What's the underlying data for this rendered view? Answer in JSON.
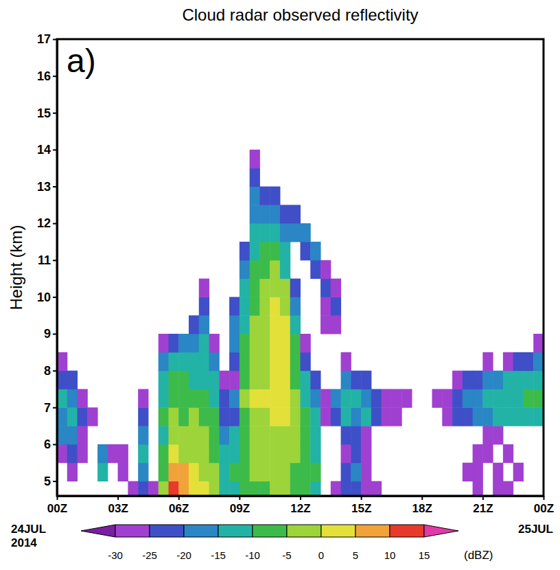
{
  "chart_data": {
    "type": "heatmap",
    "title": "Cloud radar observed reflectivity",
    "panel_label": "a)",
    "y_label": "Height (km)",
    "annotations": [
      "24JUL\n2014",
      "25JUL"
    ],
    "xlim": [
      0,
      24
    ],
    "xticks": [
      {
        "value": 0,
        "label": "00Z"
      },
      {
        "value": 3,
        "label": "03Z"
      },
      {
        "value": 6,
        "label": "06Z"
      },
      {
        "value": 9,
        "label": "09Z"
      },
      {
        "value": 12,
        "label": "12Z"
      },
      {
        "value": 15,
        "label": "15Z"
      },
      {
        "value": 18,
        "label": "18Z"
      },
      {
        "value": 21,
        "label": "21Z"
      },
      {
        "value": 24,
        "label": "00Z"
      }
    ],
    "ylim": [
      4.6,
      17
    ],
    "yticks": [
      5,
      6,
      7,
      8,
      9,
      10,
      11,
      12,
      13,
      14,
      15,
      16,
      17
    ],
    "x": [
      0.25,
      0.75,
      1.25,
      1.75,
      2.25,
      2.75,
      3.25,
      3.75,
      4.25,
      4.75,
      5.25,
      5.75,
      6.25,
      6.75,
      7.25,
      7.75,
      8.25,
      8.75,
      9.25,
      9.75,
      10.25,
      10.75,
      11.25,
      11.75,
      12.25,
      12.75,
      13.25,
      13.75,
      14.25,
      14.75,
      15.25,
      15.75,
      16.25,
      16.75,
      17.25,
      17.75,
      18.25,
      18.75,
      19.25,
      19.75,
      20.25,
      20.75,
      21.25,
      21.75,
      22.25,
      22.75,
      23.25,
      23.75
    ],
    "y": [
      4.75,
      5.25,
      5.75,
      6.25,
      6.75,
      7.25,
      7.75,
      8.25,
      8.75,
      9.25,
      9.75,
      10.25,
      10.75,
      11.25,
      11.75,
      12.25,
      12.75,
      13.25,
      13.75
    ],
    "z": [
      [
        null,
        null,
        -28,
        -20,
        -18,
        -15,
        -22,
        -30,
        null,
        null,
        null,
        null,
        null,
        null,
        null,
        null,
        null,
        null,
        null
      ],
      [
        null,
        -28,
        -22,
        -20,
        -15,
        -18,
        -25,
        null,
        null,
        null,
        null,
        null,
        null,
        null,
        null,
        null,
        null,
        null,
        null
      ],
      [
        null,
        null,
        -27,
        -28,
        -22,
        -26,
        null,
        null,
        null,
        null,
        null,
        null,
        null,
        null,
        null,
        null,
        null,
        null,
        null
      ],
      [
        null,
        null,
        null,
        null,
        -30,
        null,
        null,
        null,
        null,
        null,
        null,
        null,
        null,
        null,
        null,
        null,
        null,
        null,
        null
      ],
      [
        null,
        -15,
        -18,
        null,
        null,
        null,
        null,
        null,
        null,
        null,
        null,
        null,
        null,
        null,
        null,
        null,
        null,
        null,
        null
      ],
      [
        null,
        null,
        -30,
        null,
        null,
        null,
        null,
        null,
        null,
        null,
        null,
        null,
        null,
        null,
        null,
        null,
        null,
        null,
        null
      ],
      [
        null,
        -30,
        -28,
        null,
        null,
        null,
        null,
        null,
        null,
        null,
        null,
        null,
        null,
        null,
        null,
        null,
        null,
        null,
        null
      ],
      [
        -30,
        null,
        null,
        null,
        null,
        null,
        null,
        null,
        null,
        null,
        null,
        null,
        null,
        null,
        null,
        null,
        null,
        null,
        null
      ],
      [
        -25,
        -18,
        -15,
        -20,
        -22,
        -28,
        null,
        null,
        null,
        null,
        null,
        null,
        null,
        null,
        null,
        null,
        null,
        null,
        null
      ],
      [
        -30,
        null,
        null,
        null,
        null,
        null,
        null,
        null,
        null,
        null,
        null,
        null,
        null,
        null,
        null,
        null,
        null,
        null,
        null
      ],
      [
        -5,
        -8,
        -10,
        -12,
        -10,
        -12,
        -15,
        -20,
        -28,
        null,
        null,
        null,
        null,
        null,
        null,
        null,
        null,
        null,
        null
      ],
      [
        12,
        8,
        0,
        -3,
        -5,
        -8,
        -10,
        -15,
        -22,
        null,
        null,
        null,
        null,
        null,
        null,
        null,
        null,
        null,
        null
      ],
      [
        8,
        5,
        -2,
        -3,
        -6,
        -8,
        -10,
        -12,
        -20,
        null,
        null,
        null,
        null,
        null,
        null,
        null,
        null,
        null,
        null
      ],
      [
        3,
        0,
        -3,
        -5,
        -5,
        -8,
        -12,
        -15,
        -18,
        -25,
        null,
        null,
        null,
        null,
        null,
        null,
        null,
        null,
        null
      ],
      [
        0,
        -3,
        -5,
        -5,
        -8,
        -10,
        -12,
        -13,
        -15,
        -18,
        -22,
        -28,
        null,
        null,
        null,
        null,
        null,
        null,
        null
      ],
      [
        -3,
        -5,
        -8,
        -8,
        -10,
        -12,
        -15,
        -20,
        -28,
        null,
        null,
        null,
        null,
        null,
        null,
        null,
        null,
        null,
        null
      ],
      [
        -12,
        -15,
        -15,
        -18,
        -25,
        -22,
        -28,
        null,
        null,
        null,
        null,
        null,
        null,
        null,
        null,
        null,
        null,
        null,
        null
      ],
      [
        -12,
        -10,
        -12,
        -15,
        -25,
        -20,
        -28,
        -22,
        -20,
        -20,
        -25,
        null,
        null,
        null,
        null,
        null,
        null,
        null,
        null
      ],
      [
        -10,
        -8,
        -8,
        -10,
        -8,
        -5,
        -8,
        -10,
        -10,
        -12,
        -12,
        -15,
        -20,
        -25,
        null,
        null,
        null,
        null,
        null
      ],
      [
        -8,
        -5,
        -5,
        -5,
        -3,
        2,
        -2,
        -3,
        -5,
        -5,
        -8,
        -8,
        -10,
        -12,
        -15,
        -18,
        -20,
        -22,
        -28
      ],
      [
        -8,
        -5,
        -5,
        -5,
        -2,
        0,
        -2,
        -2,
        -2,
        -3,
        -5,
        -5,
        -8,
        -10,
        -15,
        -20,
        -25,
        null,
        null
      ],
      [
        -5,
        -5,
        -3,
        -3,
        0,
        0,
        2,
        2,
        2,
        2,
        0,
        -2,
        -5,
        -10,
        -15,
        -20,
        -25,
        null,
        null
      ],
      [
        -5,
        -5,
        -3,
        -3,
        0,
        2,
        2,
        0,
        2,
        0,
        -3,
        -5,
        -12,
        -15,
        -20,
        -25,
        null,
        null,
        null
      ],
      [
        -8,
        -8,
        -5,
        -5,
        -5,
        -5,
        -8,
        -10,
        -10,
        -15,
        -18,
        -25,
        null,
        null,
        -20,
        -22,
        null,
        null,
        null
      ],
      [
        -10,
        -8,
        -8,
        -10,
        -10,
        -12,
        -15,
        -25,
        -28,
        null,
        null,
        null,
        null,
        -22,
        -18,
        null,
        null,
        null,
        null
      ],
      [
        -12,
        -10,
        -12,
        -12,
        -15,
        -18,
        -25,
        null,
        null,
        null,
        null,
        null,
        -22,
        -20,
        null,
        null,
        null,
        null,
        null
      ],
      [
        null,
        null,
        null,
        null,
        -28,
        -30,
        null,
        null,
        null,
        -28,
        -28,
        -25,
        -27,
        null,
        null,
        null,
        null,
        null,
        null
      ],
      [
        -30,
        null,
        null,
        null,
        -22,
        -20,
        null,
        null,
        null,
        -28,
        -25,
        -30,
        null,
        null,
        null,
        null,
        null,
        null,
        null
      ],
      [
        -25,
        -25,
        -28,
        -25,
        -15,
        -15,
        -20,
        -30,
        null,
        null,
        null,
        null,
        null,
        null,
        null,
        null,
        null,
        null,
        null
      ],
      [
        -22,
        -20,
        -22,
        -25,
        -18,
        -15,
        -22,
        null,
        null,
        null,
        null,
        null,
        null,
        null,
        null,
        null,
        null,
        null,
        null
      ],
      [
        -26,
        -28,
        -30,
        -28,
        -15,
        -18,
        -25,
        null,
        null,
        null,
        null,
        null,
        null,
        null,
        null,
        null,
        null,
        null,
        null
      ],
      [
        -28,
        null,
        null,
        null,
        -22,
        -25,
        null,
        null,
        null,
        null,
        null,
        null,
        null,
        null,
        null,
        null,
        null,
        null,
        null
      ],
      [
        null,
        null,
        null,
        null,
        -27,
        -28,
        null,
        null,
        null,
        null,
        null,
        null,
        null,
        null,
        null,
        null,
        null,
        null,
        null
      ],
      [
        null,
        null,
        null,
        null,
        -28,
        -28,
        null,
        null,
        null,
        null,
        null,
        null,
        null,
        null,
        null,
        null,
        null,
        null,
        null
      ],
      [
        null,
        null,
        null,
        null,
        null,
        -30,
        null,
        null,
        null,
        null,
        null,
        null,
        null,
        null,
        null,
        null,
        null,
        null,
        null
      ],
      [
        null,
        null,
        null,
        null,
        null,
        null,
        null,
        null,
        null,
        null,
        null,
        null,
        null,
        null,
        null,
        null,
        null,
        null,
        null
      ],
      [
        null,
        null,
        null,
        null,
        null,
        null,
        null,
        null,
        null,
        null,
        null,
        null,
        null,
        null,
        null,
        null,
        null,
        null,
        null
      ],
      [
        null,
        null,
        null,
        null,
        null,
        -30,
        null,
        null,
        null,
        null,
        null,
        null,
        null,
        null,
        null,
        null,
        null,
        null,
        null
      ],
      [
        null,
        null,
        null,
        null,
        -28,
        -27,
        null,
        null,
        null,
        null,
        null,
        null,
        null,
        null,
        null,
        null,
        null,
        null,
        null
      ],
      [
        null,
        null,
        null,
        null,
        -25,
        -22,
        -28,
        null,
        null,
        null,
        null,
        null,
        null,
        null,
        null,
        null,
        null,
        null,
        null
      ],
      [
        null,
        -30,
        null,
        null,
        -22,
        -20,
        -25,
        null,
        null,
        null,
        null,
        null,
        null,
        null,
        null,
        null,
        null,
        null,
        null
      ],
      [
        -30,
        -28,
        -30,
        null,
        -20,
        -18,
        -22,
        null,
        null,
        null,
        null,
        null,
        null,
        null,
        null,
        null,
        null,
        null,
        null
      ],
      [
        null,
        null,
        -30,
        -30,
        -18,
        -15,
        -20,
        -30,
        null,
        null,
        null,
        null,
        null,
        null,
        null,
        null,
        null,
        null,
        null
      ],
      [
        -28,
        -30,
        null,
        -30,
        -15,
        -15,
        -18,
        null,
        null,
        null,
        null,
        null,
        null,
        null,
        null,
        null,
        null,
        null,
        null
      ],
      [
        -30,
        null,
        -28,
        null,
        -15,
        -12,
        -15,
        -28,
        null,
        null,
        null,
        null,
        null,
        null,
        null,
        null,
        null,
        null,
        null
      ],
      [
        null,
        -30,
        null,
        null,
        -12,
        -12,
        -15,
        -25,
        null,
        null,
        null,
        null,
        null,
        null,
        null,
        null,
        null,
        null,
        null
      ],
      [
        null,
        null,
        null,
        null,
        -12,
        -10,
        -12,
        -22,
        null,
        null,
        null,
        null,
        null,
        null,
        null,
        null,
        null,
        null,
        null
      ],
      [
        null,
        null,
        null,
        null,
        -15,
        -10,
        -12,
        -20,
        -28,
        null,
        null,
        null,
        null,
        null,
        null,
        null,
        null,
        null,
        null
      ]
    ],
    "colorbar": {
      "label": "(dBZ)",
      "range": [
        -35,
        20
      ],
      "ticks": [
        -30,
        -25,
        -20,
        -15,
        -10,
        -5,
        0,
        5,
        10,
        15
      ],
      "colors": [
        "#7a1fa2",
        "#a040d0",
        "#3f4fc8",
        "#2a86c4",
        "#22b3a6",
        "#3dbb4a",
        "#9dd43a",
        "#e3e03a",
        "#f2a23a",
        "#e83a2a",
        "#e23aa8"
      ]
    }
  }
}
